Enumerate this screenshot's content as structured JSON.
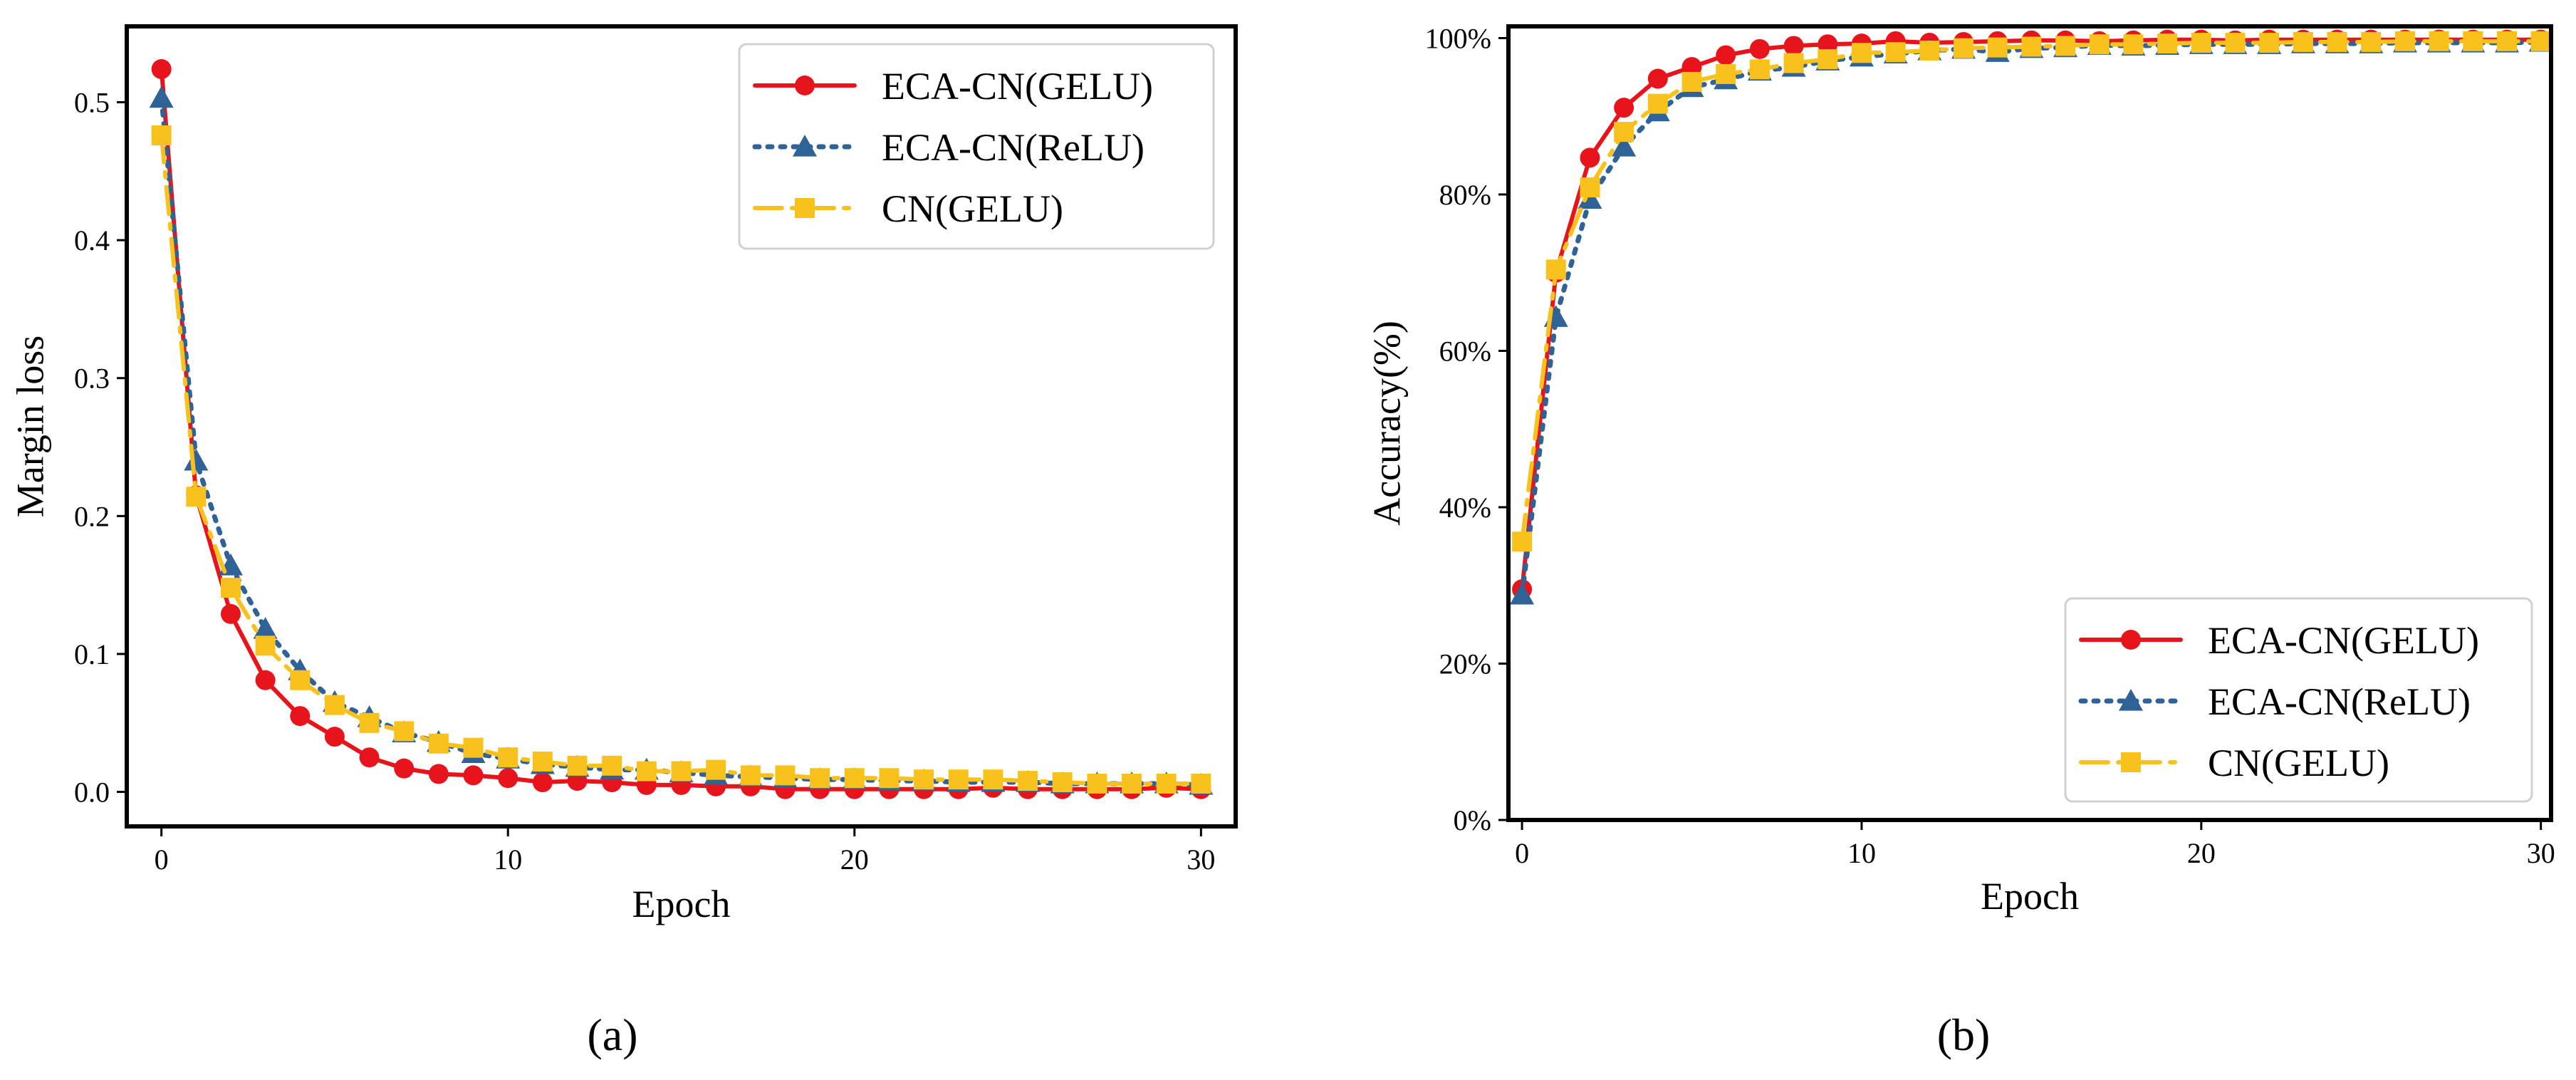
{
  "figure": {
    "panel_a_label": "(a)",
    "panel_b_label": "(b)"
  },
  "colors": {
    "gelu_eca": "#e8141b",
    "relu_eca": "#2f6296",
    "gelu_cn": "#f9c11c"
  },
  "chart_data": [
    {
      "id": "a",
      "type": "line",
      "title": "",
      "xlabel": "Epoch",
      "ylabel": "Margin loss",
      "xlim": [
        -1,
        31
      ],
      "ylim": [
        -0.025,
        0.555
      ],
      "xticks": [
        0,
        10,
        20,
        30
      ],
      "xtick_labels": [
        "0",
        "10",
        "20",
        "30"
      ],
      "yticks": [
        0.0,
        0.1,
        0.2,
        0.3,
        0.4,
        0.5
      ],
      "ytick_labels": [
        "0.0",
        "0.1",
        "0.2",
        "0.3",
        "0.4",
        "0.5"
      ],
      "grid": false,
      "legend_position": "top-right",
      "x": [
        0,
        1,
        2,
        3,
        4,
        5,
        6,
        7,
        8,
        9,
        10,
        11,
        12,
        13,
        14,
        15,
        16,
        17,
        18,
        19,
        20,
        21,
        22,
        23,
        24,
        25,
        26,
        27,
        28,
        29,
        30
      ],
      "series": [
        {
          "name": "ECA-CN(GELU)",
          "marker": "circle",
          "linestyle": "solid",
          "values": [
            0.524,
            0.215,
            0.129,
            0.081,
            0.055,
            0.04,
            0.025,
            0.017,
            0.013,
            0.012,
            0.01,
            0.007,
            0.008,
            0.007,
            0.005,
            0.005,
            0.004,
            0.004,
            0.002,
            0.002,
            0.002,
            0.002,
            0.002,
            0.002,
            0.003,
            0.002,
            0.002,
            0.002,
            0.002,
            0.003,
            0.002
          ]
        },
        {
          "name": "ECA-CN(ReLU)",
          "marker": "triangle",
          "linestyle": "dotted",
          "values": [
            0.503,
            0.24,
            0.164,
            0.118,
            0.088,
            0.065,
            0.054,
            0.043,
            0.036,
            0.028,
            0.024,
            0.02,
            0.018,
            0.016,
            0.016,
            0.014,
            0.012,
            0.011,
            0.01,
            0.009,
            0.009,
            0.008,
            0.008,
            0.007,
            0.007,
            0.007,
            0.006,
            0.006,
            0.006,
            0.006,
            0.005
          ]
        },
        {
          "name": "CN(GELU)",
          "marker": "square",
          "linestyle": "dashdot",
          "values": [
            0.476,
            0.214,
            0.148,
            0.106,
            0.081,
            0.063,
            0.05,
            0.044,
            0.035,
            0.032,
            0.025,
            0.022,
            0.019,
            0.019,
            0.015,
            0.015,
            0.016,
            0.012,
            0.012,
            0.01,
            0.01,
            0.01,
            0.009,
            0.009,
            0.009,
            0.008,
            0.007,
            0.006,
            0.006,
            0.006,
            0.006
          ]
        }
      ]
    },
    {
      "id": "b",
      "type": "line",
      "title": "",
      "xlabel": "Epoch",
      "ylabel": "Accuracy(%)",
      "xlim": [
        -0.4,
        30.3
      ],
      "ylim": [
        0,
        101.5
      ],
      "xticks": [
        0,
        10,
        20,
        30
      ],
      "xtick_labels": [
        "0",
        "10",
        "20",
        "30"
      ],
      "yticks": [
        0,
        20,
        40,
        60,
        80,
        100
      ],
      "ytick_labels": [
        "0%",
        "20%",
        "40%",
        "60%",
        "80%",
        "100%"
      ],
      "grid": false,
      "legend_position": "lower-right",
      "x": [
        0,
        1,
        2,
        3,
        4,
        5,
        6,
        7,
        8,
        9,
        10,
        11,
        12,
        13,
        14,
        15,
        16,
        17,
        18,
        19,
        20,
        21,
        22,
        23,
        24,
        25,
        26,
        27,
        28,
        29,
        30
      ],
      "series": [
        {
          "name": "ECA-CN(GELU)",
          "marker": "circle",
          "linestyle": "solid",
          "values": [
            29.5,
            70.0,
            84.7,
            91.1,
            94.8,
            96.3,
            97.8,
            98.6,
            99.0,
            99.2,
            99.3,
            99.6,
            99.4,
            99.5,
            99.6,
            99.7,
            99.7,
            99.6,
            99.7,
            99.8,
            99.8,
            99.7,
            99.8,
            99.8,
            99.8,
            99.8,
            99.8,
            99.8,
            99.8,
            99.8,
            99.8
          ]
        },
        {
          "name": "ECA-CN(ReLU)",
          "marker": "triangle",
          "linestyle": "dotted",
          "values": [
            28.8,
            64.3,
            79.4,
            86.1,
            90.6,
            93.7,
            94.7,
            95.8,
            96.3,
            97.1,
            97.6,
            98.0,
            98.4,
            98.6,
            98.2,
            98.7,
            98.8,
            99.1,
            99.0,
            99.1,
            99.2,
            99.2,
            99.2,
            99.3,
            99.3,
            99.3,
            99.4,
            99.4,
            99.4,
            99.4,
            99.5
          ]
        },
        {
          "name": "CN(GELU)",
          "marker": "square",
          "linestyle": "dashdot",
          "values": [
            35.6,
            70.4,
            80.9,
            88.0,
            91.6,
            94.4,
            95.4,
            96.0,
            96.8,
            97.3,
            98.1,
            98.2,
            98.4,
            98.7,
            98.8,
            98.9,
            99.0,
            99.2,
            99.2,
            99.3,
            99.4,
            99.4,
            99.4,
            99.5,
            99.5,
            99.5,
            99.6,
            99.6,
            99.6,
            99.6,
            99.6
          ]
        }
      ]
    }
  ]
}
